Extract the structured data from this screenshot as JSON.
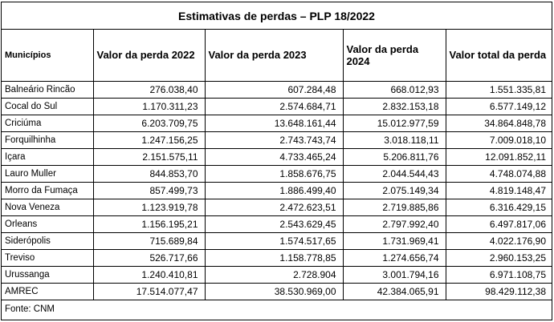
{
  "title": "Estimativas de perdas – PLP 18/2022",
  "columns": [
    "Municípios",
    "Valor da perda 2022",
    "Valor da perda 2023",
    "Valor da perda 2024",
    "Valor total da perda"
  ],
  "rows": [
    [
      "Balneário Rincão",
      "276.038,40",
      "607.284,48",
      "668.012,93",
      "1.551.335,81"
    ],
    [
      "Cocal do Sul",
      "1.170.311,23",
      "2.574.684,71",
      "2.832.153,18",
      "6.577.149,12"
    ],
    [
      "Criciúma",
      "6.203.709,75",
      "13.648.161,44",
      "15.012.977,59",
      "34.864.848,78"
    ],
    [
      "Forquilhinha",
      "1.247.156,25",
      "2.743.743,74",
      "3.018.118,11",
      "7.009.018,10"
    ],
    [
      "Içara",
      "2.151.575,11",
      "4.733.465,24",
      "5.206.811,76",
      "12.091.852,11"
    ],
    [
      "Lauro Muller",
      "844.853,70",
      "1.858.676,75",
      "2.044.544,43",
      "4.748.074,88"
    ],
    [
      "Morro da Fumaça",
      "857.499,73",
      "1.886.499,40",
      "2.075.149,34",
      "4.819.148,47"
    ],
    [
      "Nova Veneza",
      "1.123.919,78",
      "2.472.623,51",
      "2.719.885,86",
      "6.316.429,15"
    ],
    [
      "Orleans",
      "1.156.195,21",
      "2.543.629,45",
      "2.797.992,40",
      "6.497.817,06"
    ],
    [
      "Siderópolis",
      "715.689,84",
      "1.574.517,65",
      "1.731.969,41",
      "4.022.176,90"
    ],
    [
      "Treviso",
      "526.717,66",
      "1.158.778,85",
      "1.274.656,74",
      "2.960.153,25"
    ],
    [
      "Urussanga",
      "1.240.410,81",
      "2.728.904",
      "3.001.794,16",
      "6.971.108,75"
    ],
    [
      "AMREC",
      "17.514.077,47",
      "38.530.969,00",
      "42.384.065,91",
      "98.429.112,38"
    ]
  ],
  "source": "Fonte: CNM"
}
